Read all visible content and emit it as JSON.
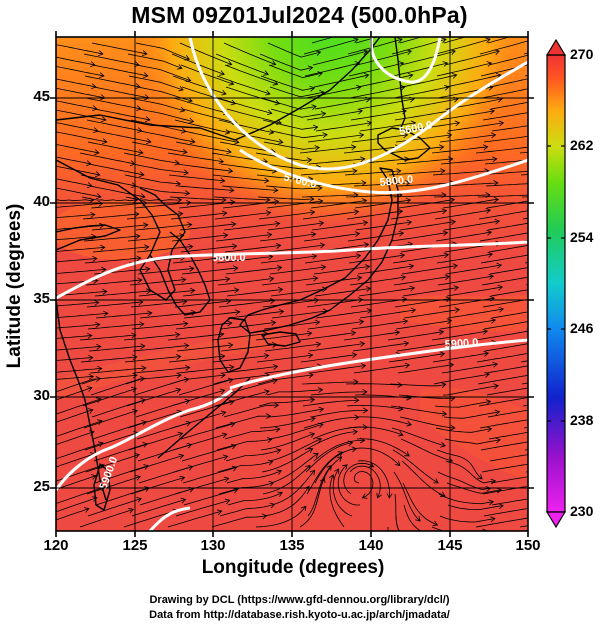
{
  "title": "MSM 09Z01Jul2024 (500.0hPa)",
  "x_axis": {
    "label": "Longitude (degrees)",
    "range": [
      120,
      150
    ],
    "ticks": [
      "120",
      "125",
      "130",
      "135",
      "140",
      "145",
      "150"
    ]
  },
  "y_axis": {
    "label": "Latitude  (degrees)",
    "range": [
      22.4,
      47.6
    ],
    "ticks": [
      "25",
      "30",
      "35",
      "40",
      "45"
    ]
  },
  "colorbar": {
    "range": [
      230,
      270
    ],
    "ticks": [
      "270",
      "262",
      "254",
      "246",
      "238",
      "230"
    ],
    "colors": [
      "#dd11dd",
      "#8800cc",
      "#1122cc",
      "#1188ee",
      "#11bbbb",
      "#22cc66",
      "#55dd11",
      "#bbdd11",
      "#ff9911",
      "#ff4422",
      "#ee3333"
    ]
  },
  "contours": [
    {
      "label": "5600.0"
    },
    {
      "label": "5700.0"
    },
    {
      "label": "5800.0"
    },
    {
      "label": "5800.0"
    },
    {
      "label": "5900.0"
    },
    {
      "label": "5900.0"
    }
  ],
  "colors": {
    "field_dominant": "#ef4a42",
    "field_cold": "#44dd22",
    "contour": "#ffffff",
    "streamline": "#000000"
  },
  "credits": {
    "line1": "Drawing by DCL (https://www.gfd-dennou.org/library/dcl/)",
    "line2": "Data from http://database.rish.kyoto-u.ac.jp/arch/jmadata/"
  }
}
